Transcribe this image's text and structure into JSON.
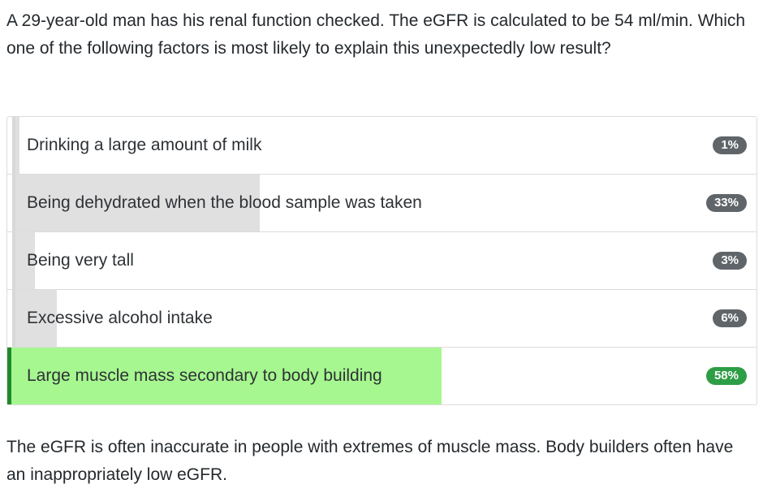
{
  "question": {
    "text": "A 29-year-old man has his renal function checked. The eGFR is calculated to be 54 ml/min. Which one of the following factors is most likely to explain this unexpectedly low result?"
  },
  "options": [
    {
      "label": "Drinking a large amount of milk",
      "percent_text": "1%",
      "percent": 1,
      "correct": false
    },
    {
      "label": "Being dehydrated when the blood sample was taken",
      "percent_text": "33%",
      "percent": 33,
      "correct": false
    },
    {
      "label": "Being very tall",
      "percent_text": "3%",
      "percent": 3,
      "correct": false
    },
    {
      "label": "Excessive alcohol intake",
      "percent_text": "6%",
      "percent": 6,
      "correct": false
    },
    {
      "label": "Large muscle mass secondary to body building",
      "percent_text": "58%",
      "percent": 58,
      "correct": true
    }
  ],
  "explanation": {
    "text": "The eGFR is often inaccurate in people with extremes of muscle mass. Body builders often have an inappropriately low eGFR."
  },
  "colors": {
    "bar_default": "#e0e0e0",
    "bar_correct": "#a6f78f",
    "badge_default": "#5f6569",
    "badge_correct": "#2e9e46",
    "correct_edge": "#1f8a2c"
  }
}
